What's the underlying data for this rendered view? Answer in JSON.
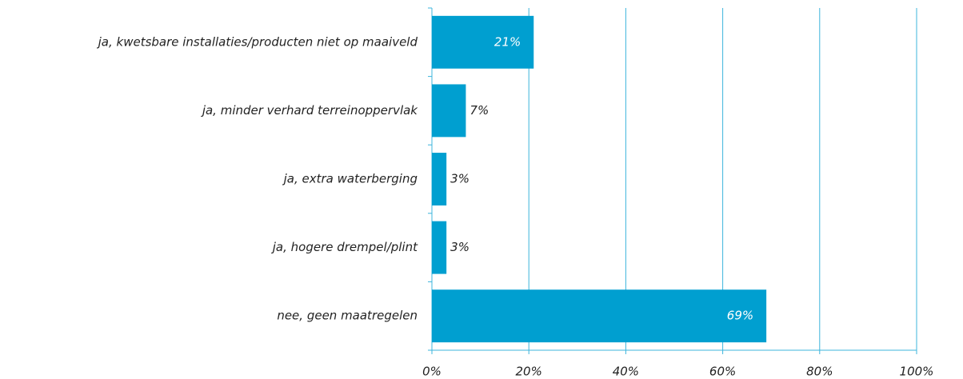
{
  "chart_data": {
    "type": "barh",
    "categories": [
      "ja, kwetsbare installaties/producten niet op maaiveld",
      "ja, minder verhard terreinoppervlak",
      "ja, extra waterberging",
      "ja, hogere drempel/plint",
      "nee, geen maatregelen"
    ],
    "values": [
      21,
      7,
      3,
      3,
      69
    ],
    "value_labels": [
      "21%",
      "7%",
      "3%",
      "3%",
      "69%"
    ],
    "color": "#009fd0",
    "xlim": [
      0,
      100
    ],
    "xticks": [
      {
        "value": 0,
        "label": "0%"
      },
      {
        "value": 20,
        "label": "20%"
      },
      {
        "value": 40,
        "label": "40%"
      },
      {
        "value": 60,
        "label": "60%"
      },
      {
        "value": 80,
        "label": "80%"
      },
      {
        "value": 100,
        "label": "100%"
      }
    ],
    "grid": true
  }
}
